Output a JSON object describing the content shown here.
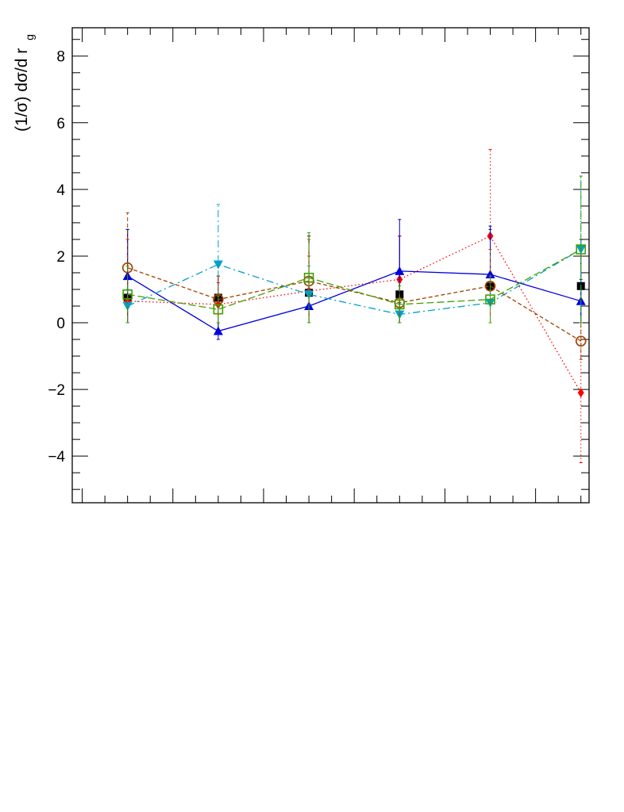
{
  "chart_data": {
    "type": "line",
    "title": "",
    "xlabel": "",
    "ylabel": "(1/σ) dσ/d r",
    "ylabel_subscript": "g",
    "ylim": [
      -5.4,
      8.85
    ],
    "yticks": [
      -4,
      -2,
      0,
      2,
      4,
      6,
      8
    ],
    "ytick_labels": [
      "−4",
      "−2",
      "0",
      "2",
      "4",
      "6",
      "8"
    ],
    "x_positions": [
      1,
      2,
      3,
      4,
      5,
      6
    ],
    "xlim": [
      0.39,
      6.09
    ],
    "grid": false,
    "series": [
      {
        "color": "#000000",
        "marker": "square",
        "line": "none",
        "points": [
          {
            "x": 1,
            "y": 0.75,
            "lo": 0.0,
            "hi": 2.8
          },
          {
            "x": 2,
            "y": 0.75,
            "lo": -0.2,
            "hi": 1.4
          },
          {
            "x": 3,
            "y": 0.9,
            "lo": 0.0,
            "hi": 2.6
          },
          {
            "x": 4,
            "y": 0.85,
            "lo": 0.0,
            "hi": 2.6
          },
          {
            "x": 5,
            "y": 1.1,
            "lo": 0.0,
            "hi": 2.8
          },
          {
            "x": 6,
            "y": 1.1,
            "lo": 0.0,
            "hi": 2.5
          }
        ]
      },
      {
        "color": "#ff0000",
        "marker": "diamond",
        "line": "dotted",
        "points": [
          {
            "x": 1,
            "y": 0.65,
            "lo": 0.0,
            "hi": 2.5
          },
          {
            "x": 2,
            "y": 0.55,
            "lo": 0.0,
            "hi": 1.2
          },
          {
            "x": 3,
            "y": 0.95,
            "lo": 0.0,
            "hi": 2.0
          },
          {
            "x": 4,
            "y": 1.3,
            "lo": 0.0,
            "hi": 2.6
          },
          {
            "x": 5,
            "y": 2.6,
            "lo": 0.0,
            "hi": 5.2
          },
          {
            "x": 6,
            "y": -2.1,
            "lo": -4.2,
            "hi": 0.0
          }
        ]
      },
      {
        "color": "#0000dd",
        "marker": "triangle-up",
        "line": "solid",
        "points": [
          {
            "x": 1,
            "y": 1.4,
            "lo": 0.0,
            "hi": 2.8
          },
          {
            "x": 2,
            "y": -0.25,
            "lo": -0.5,
            "hi": 0.0
          },
          {
            "x": 3,
            "y": 0.5,
            "lo": 0.0,
            "hi": 1.0
          },
          {
            "x": 4,
            "y": 1.55,
            "lo": 0.0,
            "hi": 3.1
          },
          {
            "x": 5,
            "y": 1.45,
            "lo": 0.0,
            "hi": 2.9
          },
          {
            "x": 6,
            "y": 0.65,
            "lo": 0.0,
            "hi": 1.3
          }
        ]
      },
      {
        "color": "#00a0c8",
        "marker": "triangle-down",
        "line": "dashdot",
        "points": [
          {
            "x": 1,
            "y": 0.5,
            "lo": 0.0,
            "hi": 1.0
          },
          {
            "x": 2,
            "y": 1.75,
            "lo": 0.0,
            "hi": 3.55
          },
          {
            "x": 3,
            "y": 0.85,
            "lo": 0.0,
            "hi": 1.7
          },
          {
            "x": 4,
            "y": 0.25,
            "lo": 0.0,
            "hi": 0.6
          },
          {
            "x": 5,
            "y": 0.6,
            "lo": 0.0,
            "hi": 1.2
          },
          {
            "x": 6,
            "y": 2.2,
            "lo": 0.0,
            "hi": 4.4
          }
        ]
      },
      {
        "color": "#a04000",
        "marker": "circle-open",
        "line": "dashed",
        "points": [
          {
            "x": 1,
            "y": 1.65,
            "lo": 0.0,
            "hi": 3.3
          },
          {
            "x": 2,
            "y": 0.7,
            "lo": 0.0,
            "hi": 1.4
          },
          {
            "x": 3,
            "y": 1.25,
            "lo": 0.0,
            "hi": 2.5
          },
          {
            "x": 4,
            "y": 0.6,
            "lo": 0.0,
            "hi": 1.2
          },
          {
            "x": 5,
            "y": 1.1,
            "lo": 0.0,
            "hi": 2.2
          },
          {
            "x": 6,
            "y": -0.55,
            "lo": -1.1,
            "hi": 0.0
          }
        ]
      },
      {
        "color": "#40a000",
        "marker": "square-open",
        "line": "longdash",
        "points": [
          {
            "x": 1,
            "y": 0.85,
            "lo": 0.0,
            "hi": 1.7
          },
          {
            "x": 2,
            "y": 0.4,
            "lo": 0.0,
            "hi": 0.8
          },
          {
            "x": 3,
            "y": 1.35,
            "lo": 0.0,
            "hi": 2.7
          },
          {
            "x": 4,
            "y": 0.55,
            "lo": 0.0,
            "hi": 1.1
          },
          {
            "x": 5,
            "y": 0.7,
            "lo": 0.0,
            "hi": 1.4
          },
          {
            "x": 6,
            "y": 2.2,
            "lo": 0.0,
            "hi": 4.4
          }
        ]
      }
    ]
  }
}
